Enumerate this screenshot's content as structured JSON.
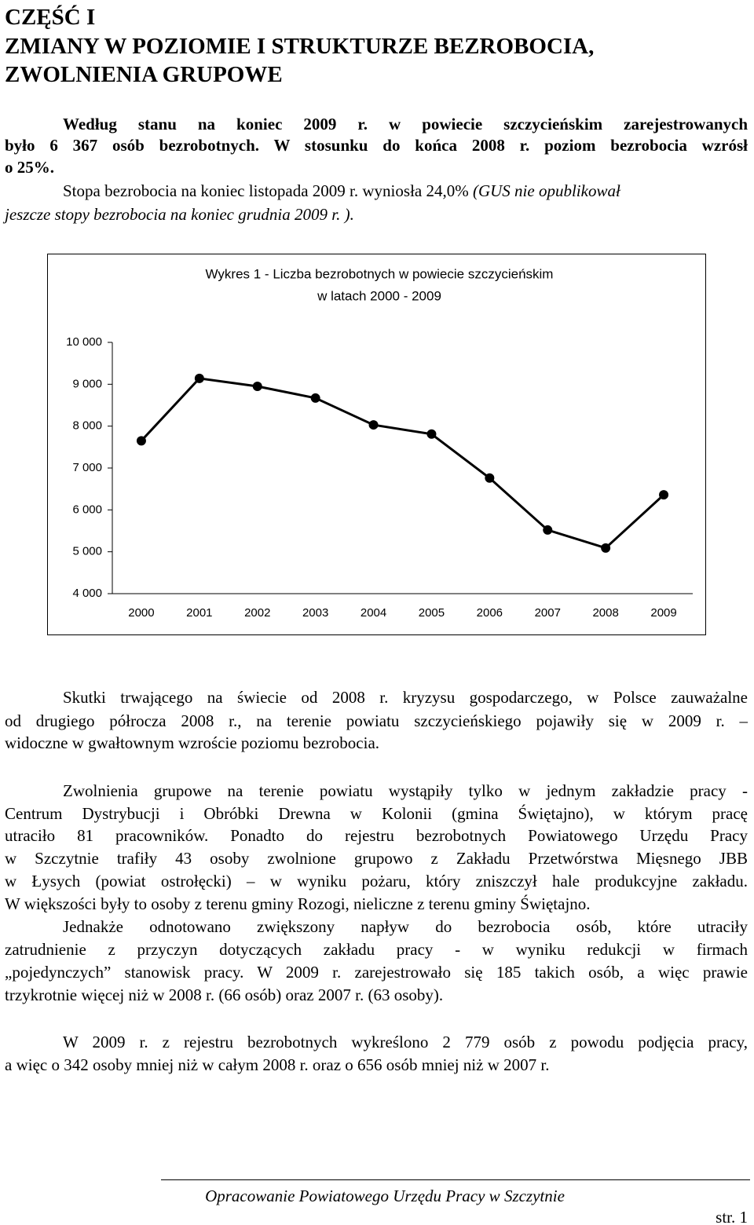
{
  "heading": [
    "CZĘŚĆ I",
    "ZMIANY W POZIOMIE I STRUKTURZE BEZROBOCIA,",
    "ZWOLNIENIA GRUPOWE"
  ],
  "intro": [
    [
      {
        "text": "Według stanu na koniec 2009 r. w powiecie szczycieńskim zarejestrowanych",
        "style": "bold"
      }
    ],
    [
      {
        "text": "było 6 367 osób bezrobotnych. W stosunku do końca 2008 r. poziom bezrobocia wzrósł",
        "style": "bold"
      }
    ],
    [
      {
        "text": "o 25%.",
        "style": "bold"
      }
    ],
    [
      {
        "text": "Stopa bezrobocia na koniec listopada 2009 r. wyniosła 24,0% ",
        "style": "normal"
      },
      {
        "text": "(GUS nie opublikował",
        "style": "italic"
      }
    ],
    [
      {
        "text": "jeszcze stopy bezrobocia na koniec grudnia 2009 r. ).",
        "style": "italic"
      }
    ]
  ],
  "chart_data": {
    "type": "line",
    "title": "Wykres 1 - Liczba bezrobotnych w powiecie szczycieńskim",
    "subtitle": "w latach 2000 - 2009",
    "categories": [
      "2000",
      "2001",
      "2002",
      "2003",
      "2004",
      "2005",
      "2006",
      "2007",
      "2008",
      "2009"
    ],
    "series": [
      {
        "color": "#000000",
        "values": [
          7650,
          9140,
          8950,
          8670,
          8030,
          7810,
          6760,
          5520,
          5090,
          6360
        ]
      }
    ],
    "ylim": [
      4000,
      10000
    ],
    "yticks": [
      {
        "value": 4000,
        "label": "4 000"
      },
      {
        "value": 5000,
        "label": "5 000"
      },
      {
        "value": 6000,
        "label": "6 000"
      },
      {
        "value": 7000,
        "label": "7 000"
      },
      {
        "value": 8000,
        "label": "8 000"
      },
      {
        "value": 9000,
        "label": "9 000"
      },
      {
        "value": 10000,
        "label": "10 000"
      }
    ],
    "grid": false
  },
  "paragraphs": [
    [
      "Skutki trwającego na świecie od 2008 r. kryzysu gospodarczego, w Polsce zauważalne",
      "od drugiego półrocza 2008 r., na terenie powiatu szczycieńskiego pojawiły się w 2009 r. –",
      "widoczne w gwałtownym wzroście poziomu bezrobocia."
    ],
    [
      "Zwolnienia grupowe na terenie powiatu wystąpiły tylko w jednym zakładzie pracy -",
      "Centrum Dystrybucji i Obróbki Drewna w Kolonii (gmina Świętajno), w którym pracę",
      "utraciło 81 pracowników. Ponadto do rejestru bezrobotnych Powiatowego Urzędu Pracy",
      "w Szczytnie trafiły 43 osoby zwolnione grupowo z Zakładu Przetwórstwa Mięsnego JBB",
      "w Łysych (powiat ostrołęcki) – w wyniku pożaru, który zniszczył hale produkcyjne zakładu.",
      "W większości były to osoby z terenu gminy Rozogi, nieliczne z terenu gminy Świętajno."
    ],
    [
      "Jednakże odnotowano zwiększony napływ do bezrobocia osób, które utraciły",
      "zatrudnienie z przyczyn dotyczących zakładu pracy - w wyniku redukcji w firmach",
      "„pojedynczych” stanowisk pracy. W 2009 r. zarejestrowało się 185 takich osób, a więc prawie",
      "trzykrotnie więcej niż w 2008 r. (66 osób) oraz 2007 r. (63 osoby)."
    ],
    [
      "W 2009 r. z rejestru bezrobotnych wykreślono 2 779 osób z powodu podjęcia pracy,",
      "a więc o 342 osoby mniej niż w całym 2008 r. oraz o 656 osób mniej niż w 2007 r."
    ]
  ],
  "footer": {
    "note": "Opracowanie Powiatowego Urzędu Pracy w Szczytnie",
    "page": "str. 1"
  }
}
